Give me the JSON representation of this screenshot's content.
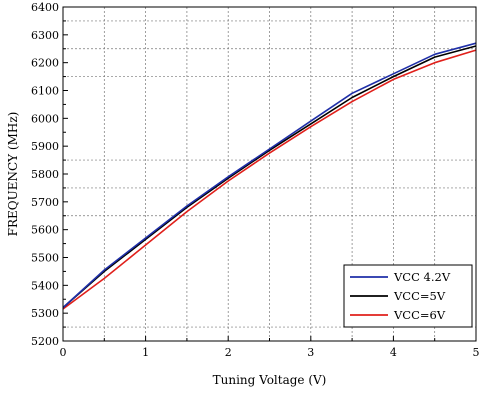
{
  "chart_data": {
    "type": "line",
    "title": "",
    "xlabel": "Tuning Voltage (V)",
    "ylabel": "FREQUENCY (MHz)",
    "xlim": [
      0,
      5
    ],
    "ylim": [
      5200,
      6400
    ],
    "xticks": [
      "0",
      "1",
      "2",
      "3",
      "4",
      "5"
    ],
    "yticks": [
      "5200",
      "5300",
      "5400",
      "5500",
      "5600",
      "5700",
      "5800",
      "5900",
      "6000",
      "6100",
      "6200",
      "6300",
      "6400"
    ],
    "grid": true,
    "legend_position": "bottom-right",
    "x": [
      0,
      0.5,
      1,
      1.5,
      2,
      2.5,
      3,
      3.5,
      4,
      4.5,
      5
    ],
    "series": [
      {
        "name": "VCC 4.2V",
        "color": "#1f2fa8",
        "values": [
          5320,
          5455,
          5570,
          5685,
          5790,
          5890,
          5990,
          6090,
          6160,
          6230,
          6270
        ]
      },
      {
        "name": "VCC=5V",
        "color": "#000000",
        "values": [
          5320,
          5450,
          5565,
          5680,
          5785,
          5885,
          5980,
          6075,
          6150,
          6220,
          6260
        ]
      },
      {
        "name": "VCC=6V",
        "color": "#e0201b",
        "values": [
          5315,
          5425,
          5545,
          5665,
          5775,
          5875,
          5970,
          6060,
          6140,
          6200,
          6245
        ]
      }
    ]
  }
}
